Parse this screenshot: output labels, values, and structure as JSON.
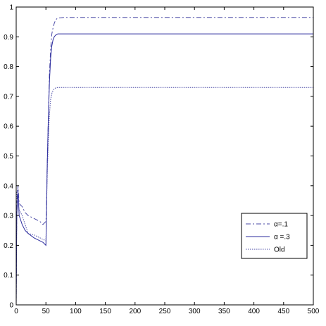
{
  "chart_data": {
    "type": "line",
    "title": "",
    "xlabel": "",
    "ylabel": "",
    "xlim": [
      0,
      500
    ],
    "ylim": [
      0,
      1
    ],
    "xticks": [
      0,
      50,
      100,
      150,
      200,
      250,
      300,
      350,
      400,
      450,
      500
    ],
    "xtick_labels": [
      "0",
      "50",
      "100",
      "150",
      "200",
      "250",
      "300",
      "350",
      "400",
      "450",
      "500"
    ],
    "yticks": [
      0,
      0.1,
      0.2,
      0.3,
      0.4,
      0.5,
      0.6,
      0.7,
      0.8,
      0.9,
      1
    ],
    "ytick_labels": [
      "0",
      "0.1",
      "0.2",
      "0.3",
      "0.4",
      "0.5",
      "0.6",
      "0.7",
      "0.8",
      "0.9",
      "1"
    ],
    "grid": false,
    "legend_position": "right",
    "series": [
      {
        "name": "α=.1",
        "style": "dash-dot",
        "color": "#4a4aa6",
        "x": [
          0,
          1,
          3,
          5,
          10,
          15,
          20,
          30,
          40,
          45,
          50,
          51,
          52,
          54,
          56,
          58,
          60,
          62,
          64,
          66,
          68,
          70,
          75,
          80,
          100,
          150,
          200,
          250,
          300,
          350,
          400,
          450,
          500
        ],
        "y": [
          0.0,
          0.34,
          0.4,
          0.34,
          0.33,
          0.31,
          0.3,
          0.29,
          0.28,
          0.27,
          0.28,
          0.32,
          0.45,
          0.62,
          0.78,
          0.86,
          0.91,
          0.93,
          0.945,
          0.955,
          0.96,
          0.963,
          0.964,
          0.965,
          0.965,
          0.965,
          0.965,
          0.965,
          0.965,
          0.965,
          0.965,
          0.965,
          0.965
        ]
      },
      {
        "name": "α =.3",
        "style": "solid",
        "color": "#2b2b9e",
        "x": [
          0,
          1,
          3,
          5,
          10,
          15,
          20,
          30,
          40,
          45,
          50,
          51,
          52,
          54,
          56,
          58,
          60,
          62,
          64,
          66,
          68,
          70,
          75,
          80,
          100,
          150,
          200,
          250,
          300,
          350,
          400,
          450,
          500
        ],
        "y": [
          0.0,
          0.3,
          0.38,
          0.3,
          0.27,
          0.25,
          0.24,
          0.225,
          0.215,
          0.21,
          0.2,
          0.3,
          0.45,
          0.62,
          0.75,
          0.83,
          0.87,
          0.89,
          0.9,
          0.905,
          0.908,
          0.91,
          0.91,
          0.91,
          0.91,
          0.91,
          0.91,
          0.91,
          0.91,
          0.91,
          0.91,
          0.91,
          0.91
        ]
      },
      {
        "name": "Old",
        "style": "dotted",
        "color": "#4a4aa6",
        "x": [
          0,
          1,
          3,
          5,
          10,
          15,
          20,
          30,
          40,
          45,
          50,
          51,
          52,
          54,
          56,
          58,
          60,
          62,
          64,
          66,
          68,
          70,
          75,
          80,
          100,
          150,
          200,
          250,
          300,
          350,
          400,
          450,
          500
        ],
        "y": [
          0.0,
          0.38,
          0.39,
          0.32,
          0.3,
          0.27,
          0.24,
          0.235,
          0.225,
          0.22,
          0.215,
          0.3,
          0.42,
          0.55,
          0.64,
          0.69,
          0.71,
          0.72,
          0.725,
          0.728,
          0.729,
          0.73,
          0.73,
          0.73,
          0.73,
          0.73,
          0.73,
          0.73,
          0.73,
          0.73,
          0.73,
          0.73,
          0.73
        ]
      }
    ]
  }
}
